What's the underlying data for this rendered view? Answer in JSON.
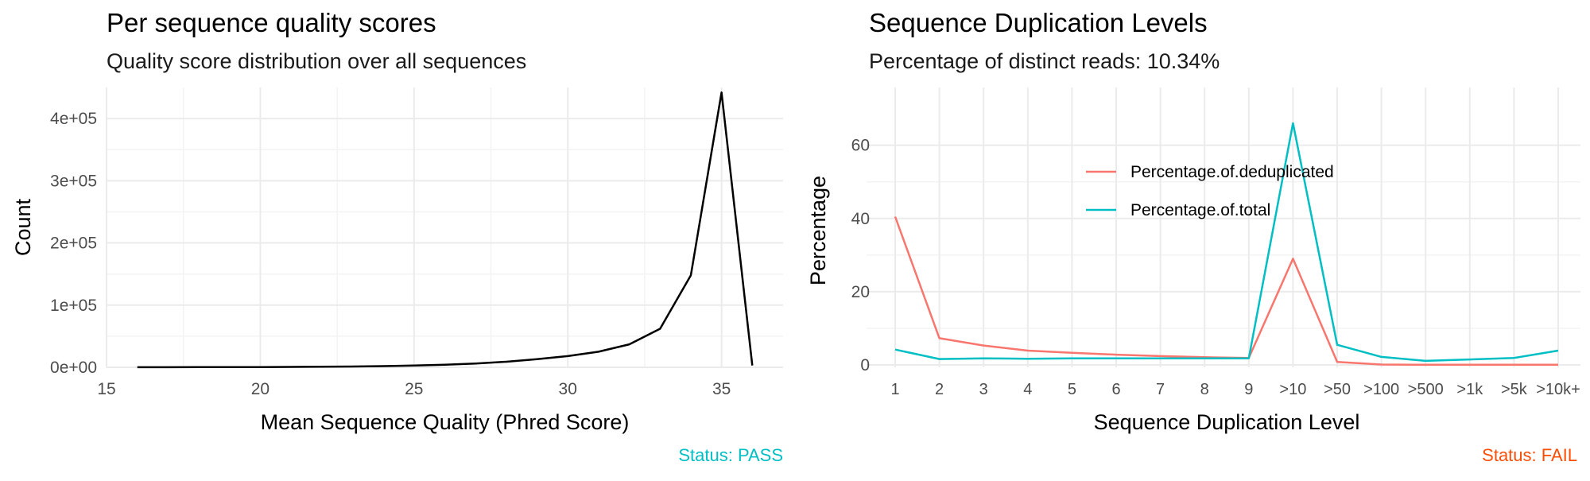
{
  "chart_data": [
    {
      "type": "line",
      "title": "Per sequence quality scores",
      "subtitle": "Quality score distribution over all sequences",
      "xlabel": "Mean Sequence Quality (Phred Score)",
      "ylabel": "Count",
      "status": "Status: PASS",
      "status_color": "#00BFC4",
      "line_color": "#000000",
      "xlim": [
        15,
        37
      ],
      "ylim": [
        0,
        450000
      ],
      "x_ticks": [
        15,
        20,
        25,
        30,
        35
      ],
      "y_ticks": [
        0,
        100000,
        200000,
        300000,
        400000
      ],
      "y_tick_labels": [
        "0e+00",
        "1e+05",
        "2e+05",
        "3e+05",
        "4e+05"
      ],
      "grid": true,
      "series": [
        {
          "x": [
            16,
            17,
            18,
            19,
            20,
            21,
            22,
            23,
            24,
            25,
            26,
            27,
            28,
            29,
            30,
            31,
            32,
            33,
            34,
            35,
            36
          ],
          "values": [
            100,
            150,
            200,
            300,
            400,
            600,
            900,
            1300,
            1900,
            2800,
            4200,
            6200,
            9000,
            13000,
            18000,
            25000,
            37000,
            62000,
            148000,
            442000,
            3000
          ]
        }
      ]
    },
    {
      "type": "line",
      "title": "Sequence Duplication Levels",
      "subtitle": "Percentage of distinct reads: 10.34%",
      "xlabel": "Sequence Duplication Level",
      "ylabel": "Percentage",
      "status": "Status: FAIL",
      "status_color": "#FC4E07",
      "categories": [
        "1",
        "2",
        "3",
        "4",
        "5",
        "6",
        "7",
        "8",
        "9",
        ">10",
        ">50",
        ">100",
        ">500",
        ">1k",
        ">5k",
        ">10k+"
      ],
      "ylim": [
        0,
        66
      ],
      "y_ticks": [
        0,
        20,
        40,
        60
      ],
      "grid": true,
      "legend_position": "top-center",
      "series": [
        {
          "name": "Percentage.of.deduplicated",
          "color": "#F8766D",
          "values": [
            40.5,
            7.3,
            5.3,
            3.9,
            3.3,
            2.8,
            2.4,
            2.1,
            1.9,
            29.0,
            0.8,
            0.1,
            0.05,
            0.05,
            0.05,
            0.05
          ]
        },
        {
          "name": "Percentage.of.total",
          "color": "#00BFC4",
          "values": [
            4.2,
            1.6,
            1.8,
            1.7,
            1.8,
            1.8,
            1.8,
            1.8,
            1.8,
            66.0,
            5.5,
            2.2,
            1.1,
            1.5,
            1.9,
            3.9
          ]
        }
      ]
    }
  ]
}
